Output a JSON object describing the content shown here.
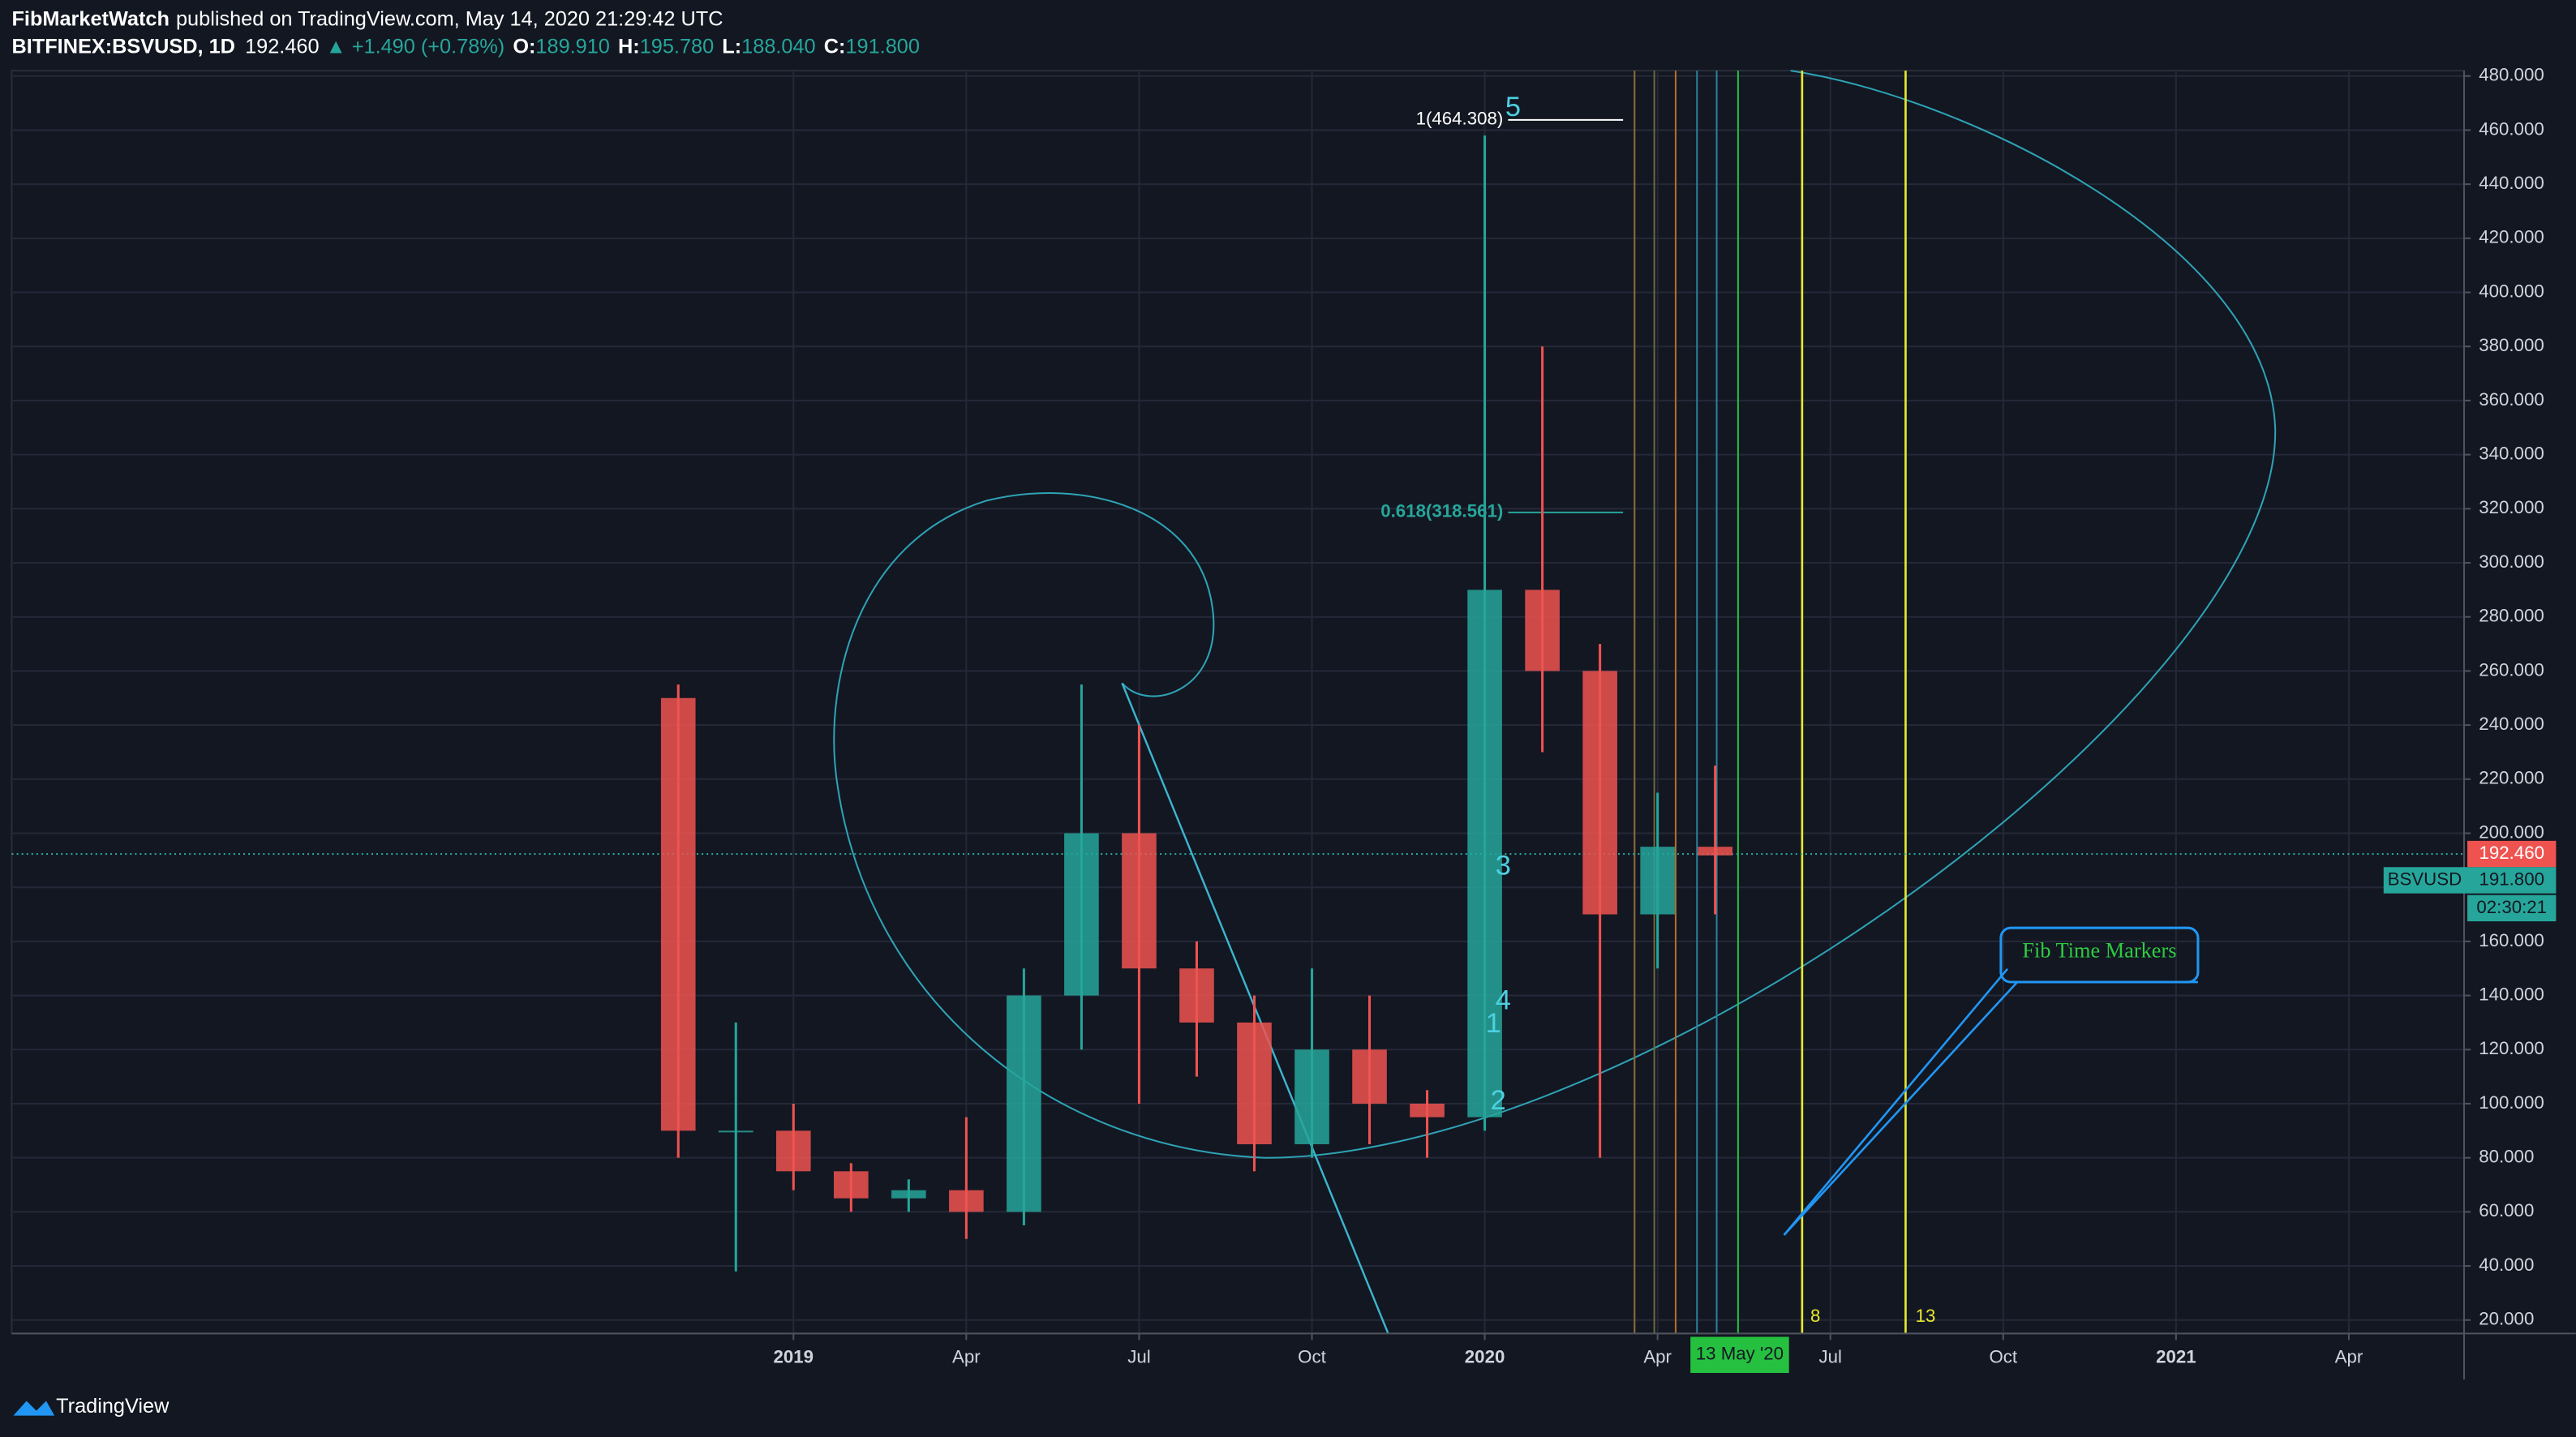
{
  "header": {
    "author": "FibMarketWatch",
    "published": "published on TradingView.com, May 14, 2020 21:29:42 UTC",
    "symbol": "BITFINEX:BSVUSD, 1D",
    "last": "192.460",
    "change": "▲ +1.490 (+0.78%)",
    "o_label": "O:",
    "o": "189.910",
    "h_label": "H:",
    "h": "195.780",
    "l_label": "L:",
    "l": "188.040",
    "c_label": "C:",
    "c": "191.800"
  },
  "price_tags": {
    "last": "192.460",
    "symbol": "BSVUSD",
    "close": "191.800",
    "countdown": "02:30:21"
  },
  "annotations": {
    "wave5": "5",
    "wave3": "3",
    "wave4": "4",
    "wave1": "1",
    "wave2": "2",
    "fib_top": "1(464.308)",
    "fib_618": "0.618(318.561)",
    "time8": "8",
    "time13": "13",
    "callout": "Fib Time Markers",
    "date_tag": "13 May '20"
  },
  "footer": {
    "brand": "TradingView"
  },
  "chart_data": {
    "type": "candlestick",
    "x": [
      "2018-11",
      "2018-12",
      "2019-01",
      "2019-02",
      "2019-03",
      "2019-04",
      "2019-05",
      "2019-06",
      "2019-07",
      "2019-08",
      "2019-09",
      "2019-10",
      "2019-11",
      "2019-12",
      "2020-01",
      "2020-02",
      "2020-03",
      "2020-04",
      "2020-05"
    ],
    "series": [
      {
        "name": "BSVUSD",
        "up_color": "#26a69a",
        "down_color": "#ef5350",
        "open": [
          250,
          90,
          90,
          75,
          65,
          68,
          60,
          140,
          200,
          150,
          130,
          85,
          120,
          100,
          95,
          290,
          260,
          170,
          195
        ],
        "high": [
          255,
          130,
          100,
          78,
          72,
          95,
          150,
          255,
          240,
          160,
          140,
          150,
          140,
          105,
          458,
          380,
          270,
          215,
          225
        ],
        "low": [
          80,
          38,
          68,
          60,
          60,
          50,
          55,
          120,
          100,
          110,
          75,
          80,
          85,
          80,
          90,
          230,
          80,
          150,
          170
        ],
        "close": [
          90,
          90,
          75,
          65,
          68,
          60,
          140,
          200,
          150,
          130,
          85,
          120,
          100,
          95,
          290,
          260,
          170,
          195,
          191.8
        ]
      }
    ],
    "xlim": [
      "2017-12",
      "2021-06"
    ],
    "xticks": [
      {
        "value": "2019-01",
        "label": "2019"
      },
      {
        "value": "2019-04",
        "label": "Apr"
      },
      {
        "value": "2019-07",
        "label": "Jul"
      },
      {
        "value": "2019-10",
        "label": "Oct"
      },
      {
        "value": "2020-01",
        "label": "2020"
      },
      {
        "value": "2020-04",
        "label": "Apr"
      },
      {
        "value": "2020-07",
        "label": "Jul"
      },
      {
        "value": "2020-10",
        "label": "Oct"
      },
      {
        "value": "2021-01",
        "label": "2021"
      },
      {
        "value": "2021-04",
        "label": "Apr"
      }
    ],
    "ylim": [
      15,
      482
    ],
    "yticks": [
      {
        "value": 20,
        "label": "20.000"
      },
      {
        "value": 40,
        "label": "40.000"
      },
      {
        "value": 60,
        "label": "60.000"
      },
      {
        "value": 80,
        "label": "80.000"
      },
      {
        "value": 100,
        "label": "100.000"
      },
      {
        "value": 120,
        "label": "120.000"
      },
      {
        "value": 140,
        "label": "140.000"
      },
      {
        "value": 160,
        "label": "160.000"
      },
      {
        "value": 180,
        "label": "180.000"
      },
      {
        "value": 200,
        "label": "200.000"
      },
      {
        "value": 220,
        "label": "220.000"
      },
      {
        "value": 240,
        "label": "240.000"
      },
      {
        "value": 260,
        "label": "260.000"
      },
      {
        "value": 280,
        "label": "280.000"
      },
      {
        "value": 300,
        "label": "300.000"
      },
      {
        "value": 320,
        "label": "320.000"
      },
      {
        "value": 340,
        "label": "340.000"
      },
      {
        "value": 360,
        "label": "360.000"
      },
      {
        "value": 380,
        "label": "380.000"
      },
      {
        "value": 400,
        "label": "400.000"
      },
      {
        "value": 420,
        "label": "420.000"
      },
      {
        "value": 440,
        "label": "440.000"
      },
      {
        "value": 460,
        "label": "460.000"
      },
      {
        "value": 480,
        "label": "480.000"
      }
    ],
    "grid": true
  }
}
